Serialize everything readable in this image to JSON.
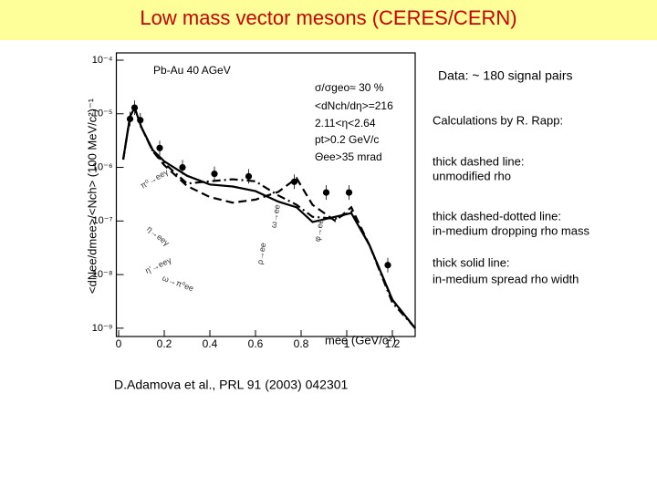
{
  "chart_data": {
    "type": "line",
    "title": "Low mass vector mesons  (CERES/CERN)",
    "xlabel": "mee (GeV/c²)",
    "ylabel": "<dNee/dmee>/<Nch> (100 MeV/c²)⁻¹",
    "log_y": true,
    "xlim": [
      -0.01,
      1.3
    ],
    "ylim": [
      7e-10,
      0.0001
    ],
    "xticks": [
      0,
      0.2,
      0.4,
      0.6,
      0.8,
      1,
      1.2
    ],
    "yticks": [
      {
        "value": 0.0001,
        "label": "10⁻⁴"
      },
      {
        "value": 1e-05,
        "label": "10⁻⁵"
      },
      {
        "value": 1e-06,
        "label": "10⁻⁶"
      },
      {
        "value": 1e-07,
        "label": "10⁻⁷"
      },
      {
        "value": 1e-08,
        "label": "10⁻⁸"
      },
      {
        "value": 1e-09,
        "label": "10⁻⁹"
      }
    ],
    "series": [
      {
        "style": "points",
        "color": "#000000",
        "x": [
          0.05,
          0.07,
          0.095,
          0.18,
          0.28,
          0.42,
          0.57,
          0.77,
          0.91,
          1.01,
          1.18
        ],
        "values": [
          8e-06,
          1.3e-05,
          7.6e-06,
          2.3e-06,
          1e-06,
          7.6e-07,
          6.8e-07,
          5.4e-07,
          3.4e-07,
          3.4e-07,
          1.5e-08
        ]
      },
      {
        "style": "solid",
        "color": "#000000",
        "x": [
          0.02,
          0.05,
          0.07,
          0.1,
          0.15,
          0.2,
          0.3,
          0.4,
          0.5,
          0.6,
          0.7,
          0.78,
          0.85,
          0.95,
          1.02,
          1.1,
          1.2,
          1.3
        ],
        "values": [
          1.4e-06,
          8.9e-06,
          1.3e-05,
          5.6e-06,
          2.1e-06,
          1.3e-06,
          7e-07,
          4.8e-07,
          4.4e-07,
          3.6e-07,
          2.3e-07,
          1.8e-07,
          9.6e-08,
          1.2e-07,
          1.4e-07,
          3.5e-08,
          3.4e-09,
          1e-09
        ]
      },
      {
        "style": "dashed",
        "color": "#000000",
        "x": [
          0.02,
          0.05,
          0.07,
          0.1,
          0.15,
          0.2,
          0.3,
          0.4,
          0.5,
          0.6,
          0.7,
          0.78,
          0.85,
          0.95,
          1.02,
          1.1,
          1.2,
          1.3
        ],
        "values": [
          1.4e-06,
          8.9e-06,
          1.3e-05,
          5.6e-06,
          2e-06,
          1.1e-06,
          4.5e-07,
          2.8e-07,
          2.2e-07,
          2.5e-07,
          3.5e-07,
          6.3e-07,
          2e-07,
          1e-07,
          1.8e-07,
          3.5e-08,
          3.4e-09,
          1e-09
        ]
      },
      {
        "style": "dashdot",
        "color": "#000000",
        "x": [
          0.02,
          0.05,
          0.07,
          0.1,
          0.15,
          0.2,
          0.3,
          0.4,
          0.5,
          0.6,
          0.7,
          0.78,
          0.85,
          0.95,
          1.02,
          1.1,
          1.2,
          1.3
        ],
        "values": [
          1.4e-06,
          8.9e-06,
          1.3e-05,
          5.6e-06,
          2e-06,
          1.2e-06,
          5e-07,
          5.5e-07,
          6e-07,
          5.5e-07,
          3e-07,
          2e-07,
          1.2e-07,
          1.1e-07,
          1.5e-07,
          3.5e-08,
          3e-09,
          1e-09
        ]
      }
    ],
    "plot_labels": [
      "Pb-Au 40 AGeV",
      "σ/σgeo≈ 30 %",
      "<dNch/dη>=216",
      "2.11<η<2.64",
      "pt>0.2 GeV/c",
      "Θee>35 mrad"
    ],
    "curve_labels": [
      "π⁰→eeγ",
      "η→eeγ",
      "η'→eeγ",
      "ω→π⁰ee",
      "ρ→ee",
      "ω→ee",
      "φ→ee"
    ],
    "notes": [
      "Data: ~ 180 signal pairs",
      "Calculations by R. Rapp:",
      "thick dashed line:",
      "unmodified rho",
      "thick dashed-dotted line:",
      "in-medium dropping rho mass",
      "thick solid line:",
      "in-medium spread rho width"
    ],
    "source": "D.Adamova et al., PRL  91 (2003) 042301"
  }
}
